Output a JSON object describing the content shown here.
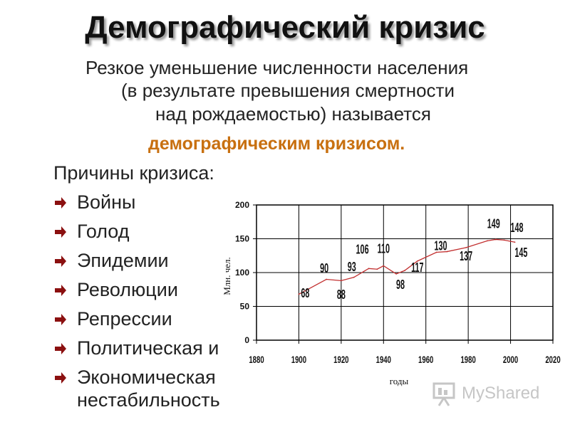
{
  "slide": {
    "title": "Демографический кризис",
    "definition_lines": [
      "Резкое уменьшение численности населения",
      "(в результате превышения смертности",
      "над рождаемостью) называется"
    ],
    "term": "демографическим кризисом.",
    "causes_title": "Причины кризиса:",
    "causes": [
      "Войны",
      "Голод",
      "Эпидемии",
      "Революции",
      "Репрессии",
      "Политическая и",
      "Экономическая нестабильность"
    ],
    "cause_continuation": "нестабильность",
    "colors": {
      "term": "#c87010",
      "bullet": "#8b1010",
      "series": "#c23030"
    }
  },
  "logo": {
    "text": "MyShared"
  },
  "chart_data": {
    "type": "line",
    "xlabel": "годы",
    "ylabel": "Млн. чел.",
    "xlim": [
      1880,
      2020
    ],
    "ylim": [
      0,
      200
    ],
    "x_ticks": [
      1880,
      1900,
      1920,
      1940,
      1960,
      1980,
      2000,
      2020
    ],
    "y_ticks": [
      0,
      50,
      100,
      150,
      200
    ],
    "grid": true,
    "series": [
      {
        "x": [
          1900,
          1913,
          1920,
          1926,
          1933,
          1937,
          1940,
          1946,
          1950,
          1956,
          1965,
          1970,
          1979,
          1989,
          1993,
          1997,
          2002
        ],
        "y": [
          68,
          90,
          88,
          93,
          106,
          105,
          110,
          98,
          103,
          117,
          130,
          131,
          137,
          147,
          149,
          148,
          145
        ]
      }
    ],
    "labels": [
      {
        "x": 1903,
        "y": 63,
        "text": "68"
      },
      {
        "x": 1912,
        "y": 100,
        "text": "90"
      },
      {
        "x": 1920,
        "y": 61,
        "text": "88"
      },
      {
        "x": 1925,
        "y": 102,
        "text": "93"
      },
      {
        "x": 1930,
        "y": 128,
        "text": "106"
      },
      {
        "x": 1940,
        "y": 129,
        "text": "110"
      },
      {
        "x": 1948,
        "y": 76,
        "text": "98"
      },
      {
        "x": 1956,
        "y": 101,
        "text": "117"
      },
      {
        "x": 1967,
        "y": 133,
        "text": "130"
      },
      {
        "x": 1979,
        "y": 118,
        "text": "137"
      },
      {
        "x": 1992,
        "y": 166,
        "text": "149"
      },
      {
        "x": 2003,
        "y": 160,
        "text": "148"
      },
      {
        "x": 2005,
        "y": 123,
        "text": "145"
      }
    ]
  }
}
